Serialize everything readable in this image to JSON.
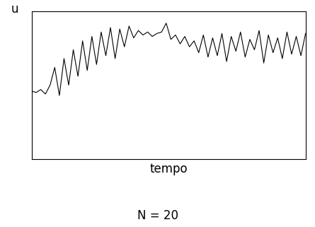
{
  "chart_data": {
    "type": "line",
    "y_label": "u",
    "x_label": "tempo",
    "annotation": "N = 20",
    "x": [
      0,
      1,
      2,
      3,
      4,
      5,
      6,
      7,
      8,
      9,
      10,
      11,
      12,
      13,
      14,
      15,
      16,
      17,
      18,
      19,
      20,
      21,
      22,
      23,
      24,
      25,
      26,
      27,
      28,
      29,
      30,
      31,
      32,
      33,
      34,
      35,
      36,
      37,
      38,
      39,
      40,
      41,
      42,
      43,
      44,
      45,
      46,
      47,
      48,
      49,
      50,
      51,
      52,
      53,
      54,
      55,
      56,
      57,
      58,
      59
    ],
    "values": [
      4.6,
      4.5,
      4.7,
      4.4,
      5.0,
      6.2,
      4.3,
      6.8,
      5.0,
      7.4,
      5.6,
      8.0,
      6.0,
      8.3,
      6.4,
      8.6,
      7.0,
      8.9,
      6.8,
      8.8,
      7.6,
      9.0,
      8.2,
      8.7,
      8.4,
      8.6,
      8.3,
      8.5,
      8.6,
      9.2,
      8.1,
      8.4,
      7.8,
      8.3,
      7.6,
      8.0,
      7.2,
      8.4,
      6.9,
      8.2,
      7.0,
      8.5,
      6.6,
      8.3,
      7.3,
      8.6,
      6.9,
      8.1,
      7.4,
      8.7,
      6.5,
      8.4,
      7.2,
      8.2,
      6.8,
      8.6,
      7.1,
      8.3,
      7.0,
      8.5
    ],
    "color": "#000000",
    "xlim": [
      0,
      59
    ],
    "ylim": [
      0,
      10
    ],
    "xticks": [],
    "yticks": [],
    "tick_labels": false
  }
}
